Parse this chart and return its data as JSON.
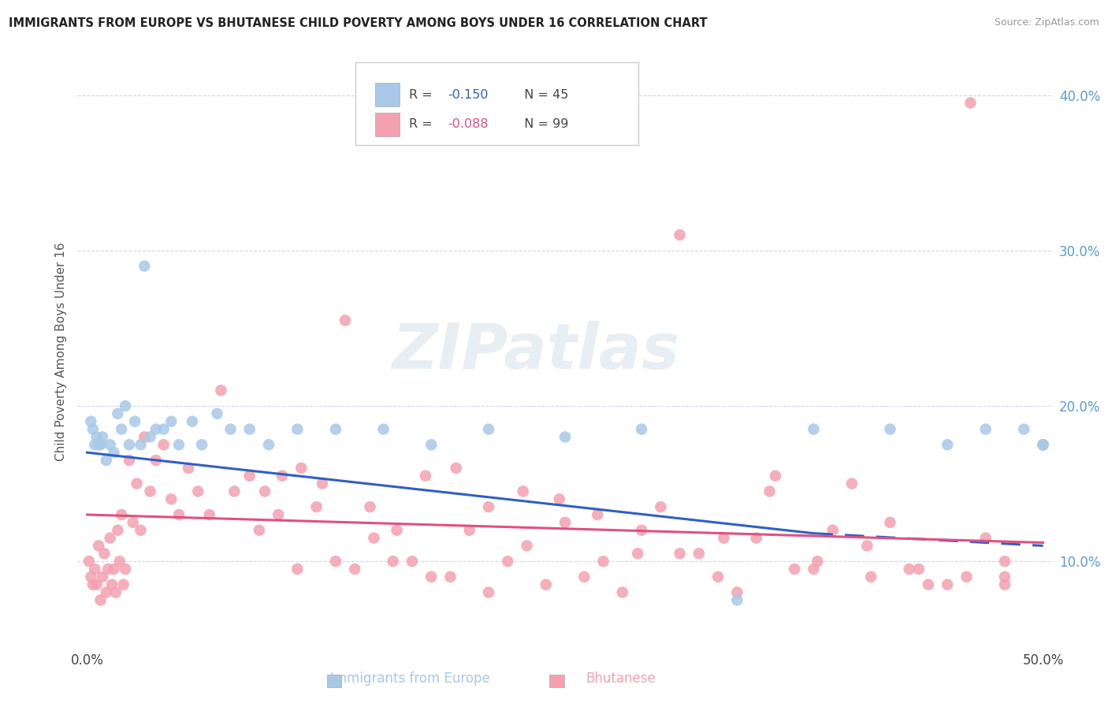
{
  "title": "IMMIGRANTS FROM EUROPE VS BHUTANESE CHILD POVERTY AMONG BOYS UNDER 16 CORRELATION CHART",
  "source": "Source: ZipAtlas.com",
  "ylabel": "Child Poverty Among Boys Under 16",
  "xlim": [
    -0.005,
    0.505
  ],
  "ylim": [
    0.045,
    0.425
  ],
  "xtick_vals": [
    0.0,
    0.1,
    0.2,
    0.3,
    0.4,
    0.5
  ],
  "xtick_labels": [
    "0.0%",
    "",
    "",
    "",
    "",
    "50.0%"
  ],
  "ytick_vals": [
    0.1,
    0.2,
    0.3,
    0.4
  ],
  "ytick_labels": [
    "10.0%",
    "20.0%",
    "30.0%",
    "40.0%"
  ],
  "legend_r1": "R = ",
  "legend_v1": "-0.150",
  "legend_n1": "  N = 45",
  "legend_r2": "R = ",
  "legend_v2": "-0.088",
  "legend_n2": "  N = 99",
  "color_blue": "#a8c8e8",
  "color_pink": "#f4a0b0",
  "color_trendline_blue": "#3060c0",
  "color_trendline_pink": "#e05080",
  "color_ytick": "#5b9bd5",
  "watermark_text": "ZIPatlas",
  "blue_x": [
    0.002,
    0.003,
    0.004,
    0.005,
    0.006,
    0.007,
    0.008,
    0.01,
    0.012,
    0.014,
    0.016,
    0.018,
    0.02,
    0.022,
    0.025,
    0.028,
    0.03,
    0.033,
    0.036,
    0.04,
    0.044,
    0.048,
    0.055,
    0.06,
    0.068,
    0.075,
    0.085,
    0.095,
    0.11,
    0.13,
    0.155,
    0.18,
    0.21,
    0.25,
    0.29,
    0.34,
    0.38,
    0.42,
    0.45,
    0.47,
    0.49,
    0.5,
    0.5,
    0.5,
    0.5
  ],
  "blue_y": [
    0.19,
    0.185,
    0.175,
    0.18,
    0.175,
    0.175,
    0.18,
    0.165,
    0.175,
    0.17,
    0.195,
    0.185,
    0.2,
    0.175,
    0.19,
    0.175,
    0.29,
    0.18,
    0.185,
    0.185,
    0.19,
    0.175,
    0.19,
    0.175,
    0.195,
    0.185,
    0.185,
    0.175,
    0.185,
    0.185,
    0.185,
    0.175,
    0.185,
    0.18,
    0.185,
    0.075,
    0.185,
    0.185,
    0.175,
    0.185,
    0.185,
    0.175,
    0.175,
    0.175,
    0.175
  ],
  "pink_x": [
    0.001,
    0.002,
    0.003,
    0.004,
    0.005,
    0.006,
    0.007,
    0.008,
    0.009,
    0.01,
    0.011,
    0.012,
    0.013,
    0.014,
    0.015,
    0.016,
    0.017,
    0.018,
    0.019,
    0.02,
    0.022,
    0.024,
    0.026,
    0.028,
    0.03,
    0.033,
    0.036,
    0.04,
    0.044,
    0.048,
    0.053,
    0.058,
    0.064,
    0.07,
    0.077,
    0.085,
    0.093,
    0.102,
    0.112,
    0.123,
    0.135,
    0.148,
    0.162,
    0.177,
    0.193,
    0.21,
    0.228,
    0.247,
    0.267,
    0.288,
    0.31,
    0.333,
    0.357,
    0.382,
    0.408,
    0.435,
    0.462,
    0.48,
    0.48,
    0.48,
    0.47,
    0.46,
    0.45,
    0.44,
    0.43,
    0.42,
    0.41,
    0.4,
    0.39,
    0.38,
    0.37,
    0.36,
    0.35,
    0.34,
    0.33,
    0.32,
    0.31,
    0.3,
    0.29,
    0.28,
    0.27,
    0.26,
    0.25,
    0.24,
    0.23,
    0.22,
    0.21,
    0.2,
    0.19,
    0.18,
    0.17,
    0.16,
    0.15,
    0.14,
    0.13,
    0.12,
    0.11,
    0.1,
    0.09
  ],
  "pink_y": [
    0.1,
    0.09,
    0.085,
    0.095,
    0.085,
    0.11,
    0.075,
    0.09,
    0.105,
    0.08,
    0.095,
    0.115,
    0.085,
    0.095,
    0.08,
    0.12,
    0.1,
    0.13,
    0.085,
    0.095,
    0.165,
    0.125,
    0.15,
    0.12,
    0.18,
    0.145,
    0.165,
    0.175,
    0.14,
    0.13,
    0.16,
    0.145,
    0.13,
    0.21,
    0.145,
    0.155,
    0.145,
    0.155,
    0.16,
    0.15,
    0.255,
    0.135,
    0.12,
    0.155,
    0.16,
    0.135,
    0.145,
    0.14,
    0.13,
    0.105,
    0.31,
    0.115,
    0.145,
    0.1,
    0.11,
    0.095,
    0.395,
    0.085,
    0.09,
    0.1,
    0.115,
    0.09,
    0.085,
    0.085,
    0.095,
    0.125,
    0.09,
    0.15,
    0.12,
    0.095,
    0.095,
    0.155,
    0.115,
    0.08,
    0.09,
    0.105,
    0.105,
    0.135,
    0.12,
    0.08,
    0.1,
    0.09,
    0.125,
    0.085,
    0.11,
    0.1,
    0.08,
    0.12,
    0.09,
    0.09,
    0.1,
    0.1,
    0.115,
    0.095,
    0.1,
    0.135,
    0.095,
    0.13,
    0.12
  ],
  "trendline_blue_x0": 0.0,
  "trendline_blue_y0": 0.17,
  "trendline_blue_x1": 0.38,
  "trendline_blue_y1": 0.118,
  "trendline_blue_dash_x0": 0.38,
  "trendline_blue_dash_y0": 0.118,
  "trendline_blue_dash_x1": 0.5,
  "trendline_blue_dash_y1": 0.11,
  "trendline_pink_x0": 0.0,
  "trendline_pink_y0": 0.13,
  "trendline_pink_x1": 0.5,
  "trendline_pink_y1": 0.112
}
